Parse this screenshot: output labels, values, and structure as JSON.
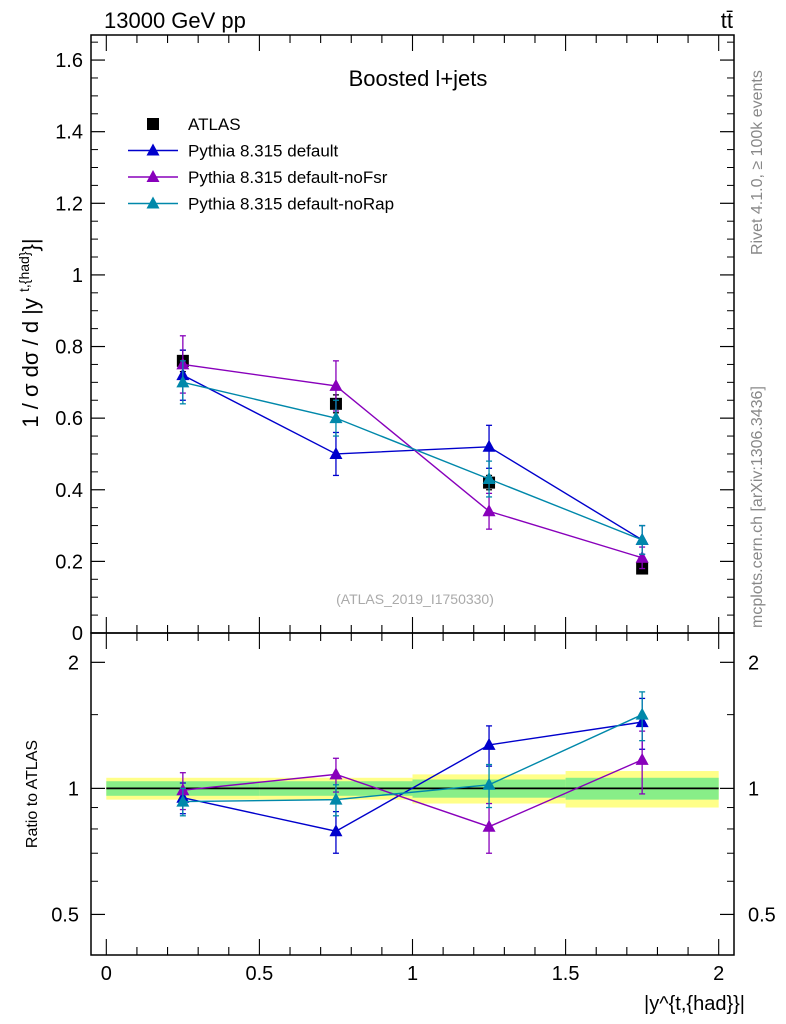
{
  "header": {
    "energy_label": "13000 GeV pp",
    "process_label": "tt̄"
  },
  "side_labels": {
    "rivet": "Rivet 4.1.0, ≥ 100k events",
    "mcplots": "mcplots.cern.ch [arXiv:1306.3436]"
  },
  "colors": {
    "atlas": "#000000",
    "default": "#0000cc",
    "noFsr": "#8800bb",
    "noRap": "#0088aa",
    "band_outer": "#ffff88",
    "band_inner": "#88ee88"
  },
  "chart_data": [
    {
      "type": "scatter",
      "title": "Boosted l+jets",
      "watermark": "(ATLAS_2019_I1750330)",
      "ylabel": "1 / σ dσ / d |y^{t,{had}}|",
      "xlim": [
        -0.05,
        2.05
      ],
      "ylim": [
        0,
        1.67
      ],
      "yticks": [
        0,
        0.2,
        0.4,
        0.6,
        0.8,
        1,
        1.2,
        1.4,
        1.6
      ],
      "ytick_labels": [
        "0",
        "0.2",
        "0.4",
        "0.6",
        "0.8",
        "1",
        "1.2",
        "1.4",
        "1.6"
      ],
      "x": [
        0.25,
        0.75,
        1.25,
        1.75
      ],
      "x_bin_edges": [
        0,
        0.5,
        1,
        1.5,
        2
      ],
      "legend": [
        "ATLAS",
        "Pythia 8.315 default",
        "Pythia 8.315 default-noFsr",
        "Pythia 8.315 default-noRap"
      ],
      "series": [
        {
          "name": "ATLAS",
          "marker": "square",
          "values": [
            0.76,
            0.64,
            0.42,
            0.18
          ],
          "errors": [
            0.03,
            0.025,
            0.02,
            0.01
          ]
        },
        {
          "name": "Pythia 8.315 default",
          "marker": "triangle",
          "values": [
            0.72,
            0.5,
            0.52,
            0.26
          ],
          "errors": [
            0.07,
            0.06,
            0.06,
            0.04
          ]
        },
        {
          "name": "Pythia 8.315 default-noFsr",
          "marker": "triangle",
          "values": [
            0.75,
            0.69,
            0.34,
            0.21
          ],
          "errors": [
            0.08,
            0.07,
            0.05,
            0.03
          ]
        },
        {
          "name": "Pythia 8.315 default-noRap",
          "marker": "triangle",
          "values": [
            0.7,
            0.6,
            0.43,
            0.26
          ],
          "errors": [
            0.06,
            0.05,
            0.05,
            0.04
          ]
        }
      ]
    },
    {
      "type": "scatter",
      "ylabel": "Ratio to ATLAS",
      "xlabel": "|y^{t,{had}}|",
      "xlim": [
        -0.05,
        2.05
      ],
      "ylim": [
        0.4,
        2.35
      ],
      "yscale": "log",
      "yticks": [
        0.5,
        1,
        2
      ],
      "ytick_labels": [
        "0.5",
        "1",
        "2"
      ],
      "xticks": [
        0,
        0.5,
        1,
        1.5,
        2
      ],
      "xtick_labels": [
        "0",
        "0.5",
        "1",
        "1.5",
        "2"
      ],
      "x": [
        0.25,
        0.75,
        1.25,
        1.75
      ],
      "band": {
        "inner": [
          0.04,
          0.04,
          0.05,
          0.06
        ],
        "outer": [
          0.06,
          0.06,
          0.08,
          0.1
        ]
      },
      "series": [
        {
          "name": "Pythia 8.315 default",
          "values": [
            0.95,
            0.79,
            1.27,
            1.44
          ],
          "errors": [
            0.08,
            0.09,
            0.14,
            0.2
          ]
        },
        {
          "name": "Pythia 8.315 default-noFsr",
          "values": [
            0.99,
            1.08,
            0.81,
            1.17
          ],
          "errors": [
            0.1,
            0.1,
            0.11,
            0.2
          ]
        },
        {
          "name": "Pythia 8.315 default-noRap",
          "values": [
            0.93,
            0.94,
            1.02,
            1.5
          ],
          "errors": [
            0.07,
            0.08,
            0.12,
            0.2
          ]
        }
      ]
    }
  ]
}
